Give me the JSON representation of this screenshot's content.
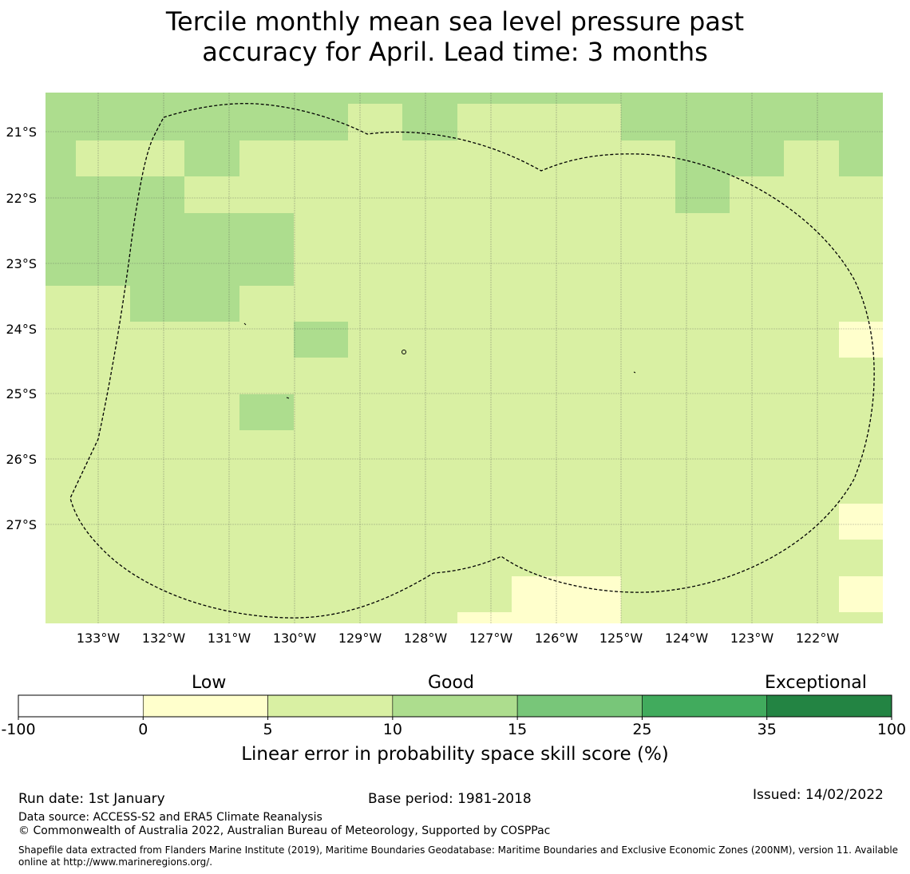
{
  "title": {
    "line1": "Tercile monthly mean sea level pressure past",
    "line2": "accuracy for April. Lead time: 3 months"
  },
  "map": {
    "lat_labels": [
      "21°S",
      "22°S",
      "23°S",
      "24°S",
      "25°S",
      "26°S",
      "27°S"
    ],
    "lon_labels": [
      "133°W",
      "132°W",
      "131°W",
      "130°W",
      "129°W",
      "128°W",
      "127°W",
      "126°W",
      "125°W",
      "124°W",
      "123°W",
      "122°W"
    ],
    "colors": {
      "Low": "#ffffcc",
      "Good": "#d9f0a3",
      "Good2": "#addd8e",
      "grid": "#555555"
    }
  },
  "colorbar": {
    "category_labels": {
      "low": "Low",
      "good": "Good",
      "exceptional": "Exceptional"
    },
    "ticks": [
      "-100",
      "0",
      "5",
      "10",
      "15",
      "25",
      "35",
      "100"
    ],
    "colors": [
      "#ffffff",
      "#ffffcc",
      "#d9f0a3",
      "#addd8e",
      "#78c679",
      "#41ab5d",
      "#238443"
    ],
    "xlabel": "Linear error in probability space skill score (%)"
  },
  "footer": {
    "run_date": "Run date: 1st January",
    "base_period": "Base period: 1981-2018",
    "issued": "Issued: 14/02/2022",
    "data_source": "Data source: ACCESS-S2 and ERA5 Climate Reanalysis",
    "copyright": "© Commonwealth of Australia 2022, Australian Bureau of Meteorology, Supported by COSPPac",
    "shapefile": "Shapefile data extracted from Flanders Marine Institute (2019), Maritime Boundaries Geodatabase: Maritime Boundaries and Exclusive Economic Zones (200NM), version 11. Available online at http://www.marineregions.org/."
  }
}
